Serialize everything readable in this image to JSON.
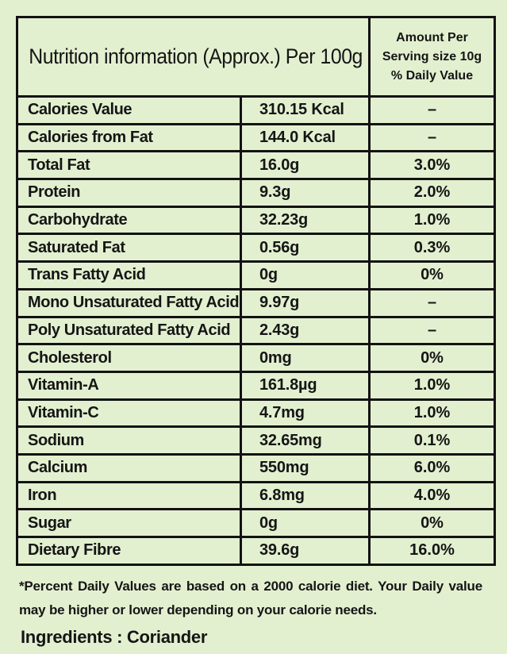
{
  "table": {
    "title": "Nutrition information (Approx.) Per 100g",
    "amount_header": {
      "line1": "Amount Per",
      "line2": "Serving size 10g",
      "line3": "% Daily Value"
    },
    "rows": [
      {
        "nutrient": "Calories Value",
        "quantity": "310.15 Kcal",
        "daily_value": "–"
      },
      {
        "nutrient": "Calories from Fat",
        "quantity": "144.0 Kcal",
        "daily_value": "–"
      },
      {
        "nutrient": "Total Fat",
        "quantity": "16.0g",
        "daily_value": "3.0%"
      },
      {
        "nutrient": "Protein",
        "quantity": "9.3g",
        "daily_value": "2.0%"
      },
      {
        "nutrient": "Carbohydrate",
        "quantity": "32.23g",
        "daily_value": "1.0%"
      },
      {
        "nutrient": "Saturated Fat",
        "quantity": "0.56g",
        "daily_value": "0.3%"
      },
      {
        "nutrient": "Trans Fatty Acid",
        "quantity": "0g",
        "daily_value": "0%"
      },
      {
        "nutrient": "Mono Unsaturated Fatty Acid",
        "quantity": "9.97g",
        "daily_value": "–"
      },
      {
        "nutrient": "Poly Unsaturated Fatty Acid",
        "quantity": "2.43g",
        "daily_value": "–"
      },
      {
        "nutrient": "Cholesterol",
        "quantity": "0mg",
        "daily_value": "0%"
      },
      {
        "nutrient": "Vitamin-A",
        "quantity": "161.8µg",
        "daily_value": "1.0%"
      },
      {
        "nutrient": "Vitamin-C",
        "quantity": "4.7mg",
        "daily_value": "1.0%"
      },
      {
        "nutrient": "Sodium",
        "quantity": "32.65mg",
        "daily_value": "0.1%"
      },
      {
        "nutrient": "Calcium",
        "quantity": "550mg",
        "daily_value": "6.0%"
      },
      {
        "nutrient": "Iron",
        "quantity": "6.8mg",
        "daily_value": "4.0%"
      },
      {
        "nutrient": "Sugar",
        "quantity": "0g",
        "daily_value": "0%"
      },
      {
        "nutrient": "Dietary Fibre",
        "quantity": "39.6g",
        "daily_value": "16.0%"
      }
    ]
  },
  "footnote": "*Percent Daily Values are based on a 2000 calorie diet. Your Daily value may be higher or lower depending on your calorie needs.",
  "ingredients": "Ingredients : Coriander",
  "colors": {
    "background": "#e3f0d0",
    "border": "#121212",
    "text": "#151515"
  }
}
